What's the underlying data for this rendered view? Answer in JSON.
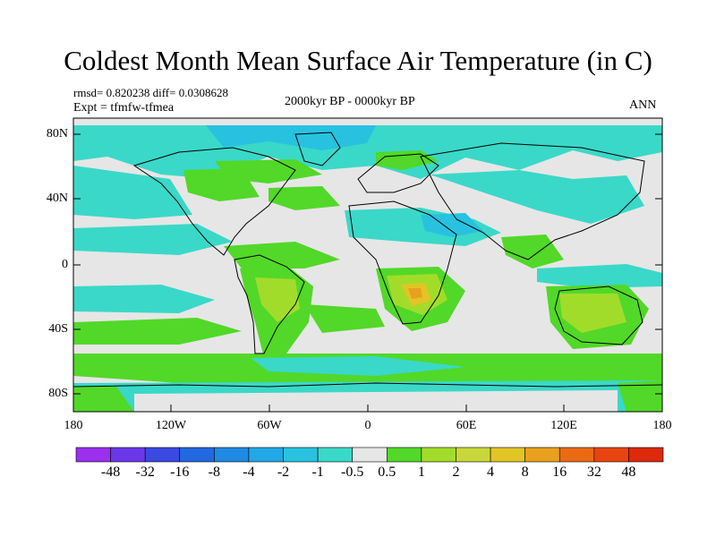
{
  "title": "Coldest Month Mean Surface Air Temperature (in C)",
  "stats": "rmsd= 0.820238 diff= 0.0308628",
  "experiment": "Expt = tfmfw-tfmea",
  "period": "2000kyr BP - 0000kyr BP",
  "season": "ANN",
  "lat_labels": [
    "80N",
    "40N",
    "0",
    "40S",
    "80S"
  ],
  "lon_labels": [
    "180",
    "120W",
    "60W",
    "0",
    "60E",
    "120E",
    "180"
  ],
  "colorbar": {
    "labels": [
      "-48",
      "-32",
      "-16",
      "-8",
      "-4",
      "-2",
      "-1",
      "-0.5",
      "0.5",
      "1",
      "2",
      "4",
      "8",
      "16",
      "32",
      "48"
    ],
    "colors": [
      "#9b30ef",
      "#6a38e8",
      "#3a4ae0",
      "#2268e0",
      "#1e8ae4",
      "#22a8e6",
      "#28c2e0",
      "#3ad8c8",
      "#e6e6e6",
      "#52d828",
      "#a2dc2a",
      "#c8d83a",
      "#e2c426",
      "#e8a01e",
      "#ea6a14",
      "#e84410",
      "#dc2a0a"
    ]
  },
  "map_fill": {
    "ocean_neutral": "#e6e6e6",
    "cool_light": "#3ad8c8",
    "cool_mid": "#28c2e0",
    "cool_strong": "#22a8e6",
    "warm_light": "#52d828",
    "warm_mid": "#a2dc2a",
    "warm_strong": "#c8d83a",
    "hot": "#e2c426",
    "hottest": "#e8a01e"
  }
}
